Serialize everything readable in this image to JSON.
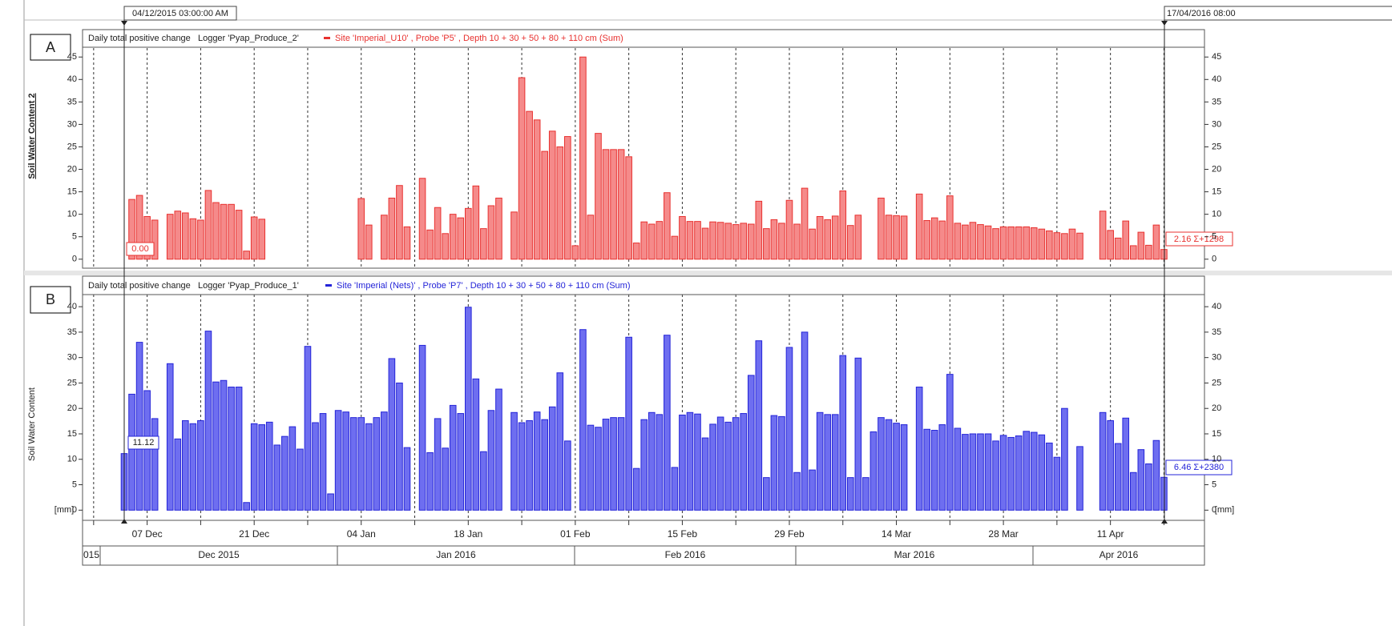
{
  "cursors": {
    "start": "04/12/2015 03:00:00 AM",
    "end": "17/04/2016 08:00"
  },
  "chart_data": [
    {
      "type": "bar",
      "panel_label": "A",
      "header": "Daily total positive change   Logger 'Pyap_Produce_2'",
      "y_label": "Soil Water Content 2",
      "series": [
        {
          "name": "Site 'Imperial_U10' , Probe 'P5' , Depth 10 + 30 + 50 + 80 + 110 cm (Sum)",
          "color": "#e8312f",
          "values": [
            0,
            13.3,
            14.2,
            9.5,
            8.7,
            null,
            10,
            10.7,
            10.3,
            9,
            8.7,
            15.3,
            12.6,
            12.2,
            12.2,
            10.9,
            1.8,
            9.4,
            8.9,
            null,
            null,
            null,
            null,
            null,
            null,
            null,
            null,
            null,
            null,
            null,
            null,
            13.5,
            7.6,
            null,
            9.8,
            13.6,
            16.4,
            7.2,
            null,
            18,
            6.5,
            11.5,
            5.7,
            10,
            9.2,
            11.3,
            16.3,
            6.8,
            11.9,
            13.6,
            null,
            10.5,
            40.4,
            32.9,
            31,
            24,
            28.5,
            25,
            27.3,
            3,
            45,
            9.8,
            28,
            24.4,
            24.4,
            24.4,
            22.8,
            3.6,
            8.3,
            7.8,
            8.4,
            14.8,
            5.1,
            9.5,
            8.4,
            8.4,
            6.9,
            8.3,
            8.2,
            8,
            7.7,
            8,
            7.8,
            12.9,
            6.8,
            8.8,
            8,
            13.1,
            7.8,
            15.8,
            6.7,
            9.5,
            8.8,
            9.6,
            15.2,
            7.5,
            9.8,
            null,
            null,
            13.6,
            9.8,
            9.7,
            9.6,
            null,
            14.5,
            8.6,
            9.2,
            8.5,
            14.1,
            8,
            7.6,
            8.2,
            7.7,
            7.4,
            6.8,
            7.2,
            7.2,
            7.2,
            7.2,
            7,
            6.7,
            6.3,
            5.9,
            5.7,
            6.7,
            5.8,
            null,
            null,
            10.7,
            6.4,
            4.7,
            8.5,
            3,
            6,
            3.1,
            7.6,
            2.16
          ]
        }
      ],
      "ylim": [
        -2,
        47
      ],
      "yticks": [
        0,
        5,
        10,
        15,
        20,
        25,
        30,
        35,
        40,
        45
      ],
      "readouts": [
        "0.00",
        "2.16 Σ+1298"
      ]
    },
    {
      "type": "bar",
      "panel_label": "B",
      "header": "Daily total positive change   Logger 'Pyap_Produce_1'",
      "y_label": "Soil Water Content",
      "series": [
        {
          "name": "Site 'Imperial (Nets)' , Probe 'P7' , Depth 10 + 30 + 50 + 80 + 110 cm (Sum)",
          "color": "#2424d8",
          "values": [
            11.12,
            22.8,
            33,
            23.5,
            18,
            null,
            28.8,
            14,
            17.6,
            17,
            17.6,
            35.2,
            25.2,
            25.5,
            24.2,
            24.2,
            1.5,
            17,
            16.8,
            17.3,
            12.8,
            14.5,
            16.4,
            12,
            32.2,
            17.2,
            19,
            3.2,
            19.6,
            19.3,
            18.2,
            18.2,
            17,
            18.2,
            19.3,
            29.8,
            25,
            12.3,
            null,
            32.4,
            11.3,
            18,
            12.2,
            20.6,
            19,
            39.9,
            25.8,
            11.5,
            19.6,
            23.8,
            null,
            19.2,
            17.2,
            17.6,
            19.3,
            17.8,
            20.3,
            27,
            13.6,
            null,
            35.5,
            16.7,
            16.3,
            17.9,
            18.2,
            18.2,
            34,
            8.2,
            17.8,
            19.2,
            18.8,
            34.4,
            8.4,
            18.7,
            19.2,
            18.9,
            14.2,
            16.9,
            18.3,
            17.3,
            18.2,
            19,
            26.5,
            33.3,
            6.4,
            18.6,
            18.4,
            32,
            7.4,
            35,
            7.9,
            19.2,
            18.8,
            18.8,
            30.4,
            6.4,
            29.9,
            6.4,
            15.4,
            18.2,
            17.8,
            17.1,
            16.8,
            null,
            24.2,
            15.9,
            15.7,
            16.8,
            26.7,
            16.1,
            14.9,
            15,
            15,
            15,
            13.6,
            14.7,
            14.3,
            14.6,
            15.5,
            15.3,
            14.8,
            13.2,
            10.4,
            20,
            null,
            12.5,
            null,
            null,
            19.2,
            17.6,
            13.1,
            18.1,
            7.4,
            11.9,
            9.1,
            13.7,
            6.46
          ]
        }
      ],
      "ylim": [
        -2,
        46
      ],
      "yticks": [
        0,
        5,
        10,
        15,
        20,
        25,
        30,
        35,
        40
      ],
      "readouts": [
        "11.12",
        "6.46 Σ+2380"
      ],
      "categories": [
        null,
        null,
        null,
        "07 Dec",
        null,
        null,
        null,
        null,
        null,
        null,
        null,
        null,
        null,
        null,
        null,
        null,
        null,
        "21 Dec",
        null,
        null,
        null,
        null,
        null,
        null,
        null,
        null,
        null,
        null,
        null,
        null,
        null,
        "04 Jan",
        null,
        null,
        null,
        null,
        null,
        null,
        null,
        null,
        null,
        null,
        null,
        null,
        null,
        "18 Jan",
        null,
        null,
        null,
        null,
        null,
        null,
        null,
        null,
        null,
        null,
        null,
        null,
        null,
        "01 Feb",
        null,
        null,
        null,
        null,
        null,
        null,
        null,
        null,
        null,
        null,
        null,
        null,
        null,
        "15 Feb",
        null,
        null,
        null,
        null,
        null,
        null,
        null,
        null,
        null,
        null,
        null,
        null,
        null,
        "29 Feb",
        null,
        null,
        null,
        null,
        null,
        null,
        null,
        null,
        null,
        null,
        null,
        null,
        null,
        "14 Mar",
        null,
        null,
        null,
        null,
        null,
        null,
        null,
        null,
        null,
        null,
        null,
        null,
        null,
        "28 Mar",
        null,
        null,
        null,
        null,
        null,
        null,
        null,
        null,
        null,
        null,
        null,
        null,
        null,
        "11 Apr",
        null,
        null,
        null,
        null,
        null,
        null,
        null
      ],
      "months": [
        "015",
        "Dec 2015",
        "Jan 2016",
        "Feb 2016",
        "Mar 2016",
        "Apr 2016"
      ],
      "x_unit": "[mm]"
    }
  ]
}
